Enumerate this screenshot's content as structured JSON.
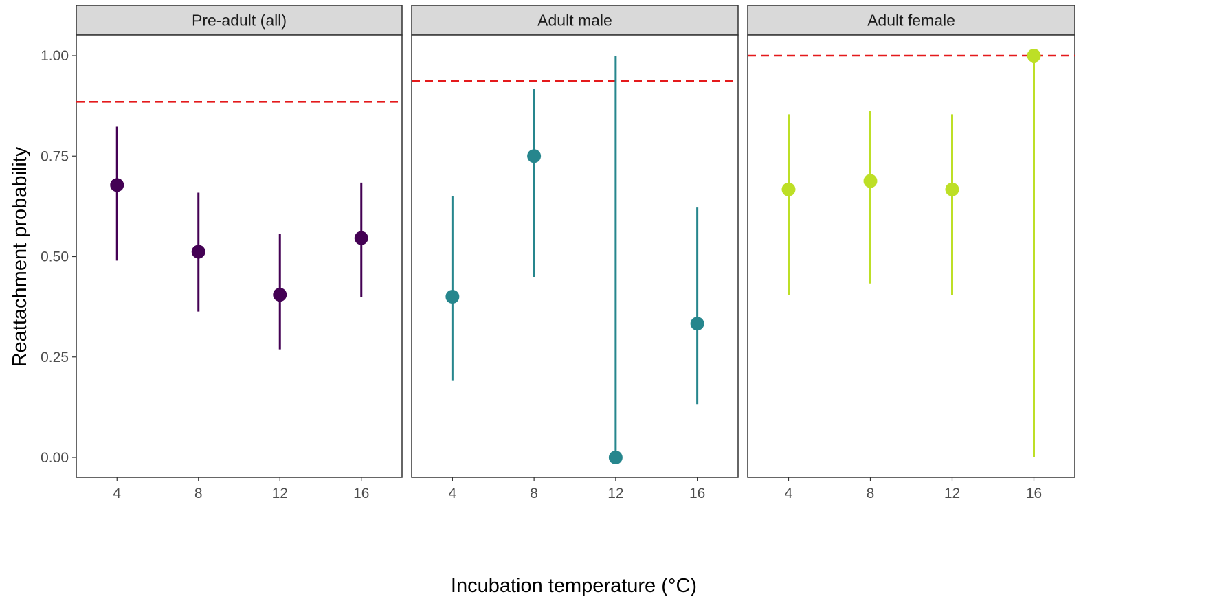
{
  "chart_data": {
    "type": "scatter",
    "xlabel": "Incubation temperature (°C)",
    "ylabel": "Reattachment probability",
    "x_ticks": [
      4,
      8,
      12,
      16
    ],
    "xlim": [
      2,
      18
    ],
    "ylim": [
      -0.05,
      1.05
    ],
    "y_ticks": [
      "0.00",
      "0.25",
      "0.50",
      "0.75",
      "1.00"
    ],
    "y_tick_values": [
      0,
      0.25,
      0.5,
      0.75,
      1.0
    ],
    "ref_line_color": "#e41a1c",
    "grid": false,
    "panels": [
      {
        "title": "Pre-adult (all)",
        "color": "#440154",
        "reference_line": 0.885,
        "points": [
          {
            "x": 4,
            "y": 0.678,
            "lower": 0.49,
            "upper": 0.823
          },
          {
            "x": 8,
            "y": 0.512,
            "lower": 0.363,
            "upper": 0.659
          },
          {
            "x": 12,
            "y": 0.405,
            "lower": 0.269,
            "upper": 0.557
          },
          {
            "x": 16,
            "y": 0.546,
            "lower": 0.399,
            "upper": 0.684
          }
        ]
      },
      {
        "title": "Adult male",
        "color": "#26868d",
        "reference_line": 0.937,
        "points": [
          {
            "x": 4,
            "y": 0.4,
            "lower": 0.192,
            "upper": 0.651
          },
          {
            "x": 8,
            "y": 0.75,
            "lower": 0.449,
            "upper": 0.917
          },
          {
            "x": 12,
            "y": 0.0,
            "lower": 0.0,
            "upper": 1.0
          },
          {
            "x": 16,
            "y": 0.333,
            "lower": 0.133,
            "upper": 0.622
          }
        ]
      },
      {
        "title": "Adult female",
        "color": "#bddf26",
        "reference_line": 1.0,
        "points": [
          {
            "x": 4,
            "y": 0.667,
            "lower": 0.405,
            "upper": 0.854
          },
          {
            "x": 8,
            "y": 0.688,
            "lower": 0.433,
            "upper": 0.863
          },
          {
            "x": 12,
            "y": 0.667,
            "lower": 0.405,
            "upper": 0.854
          },
          {
            "x": 16,
            "y": 1.0,
            "lower": 0.0,
            "upper": 1.0
          }
        ]
      }
    ]
  }
}
